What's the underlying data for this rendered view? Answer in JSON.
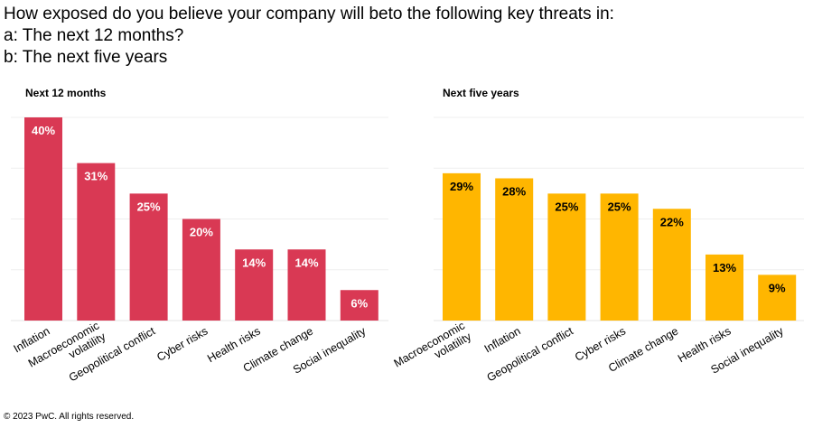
{
  "title_lines": [
    "How exposed do you believe your company will beto the following key threats in:",
    "a: The next 12 months?",
    "b: The next five years"
  ],
  "footer": "© 2023 PwC. All rights reserved.",
  "chart_data": [
    {
      "type": "bar",
      "title": "Next 12 months",
      "color": "#d93954",
      "label_color": "#ffffff",
      "categories": [
        "Inflation",
        "Macroeconomic volatility",
        "Geopolitical conflict",
        "Cyber risks",
        "Health risks",
        "Climate change",
        "Social inequality"
      ],
      "values": [
        40,
        31,
        25,
        20,
        14,
        14,
        6
      ],
      "data_labels": [
        "40%",
        "31%",
        "25%",
        "20%",
        "14%",
        "14%",
        "6%"
      ],
      "ylim": [
        0,
        40
      ],
      "grid": true,
      "unit": "%"
    },
    {
      "type": "bar",
      "title": "Next five years",
      "color": "#ffb600",
      "label_color": "#000000",
      "categories": [
        "Macroeconomic volatility",
        "Inflation",
        "Geopolitical conflict",
        "Cyber risks",
        "Climate change",
        "Health risks",
        "Social inequality"
      ],
      "values": [
        29,
        28,
        25,
        25,
        22,
        13,
        9
      ],
      "data_labels": [
        "29%",
        "28%",
        "25%",
        "25%",
        "22%",
        "13%",
        "9%"
      ],
      "ylim": [
        0,
        40
      ],
      "grid": true,
      "unit": "%"
    }
  ]
}
